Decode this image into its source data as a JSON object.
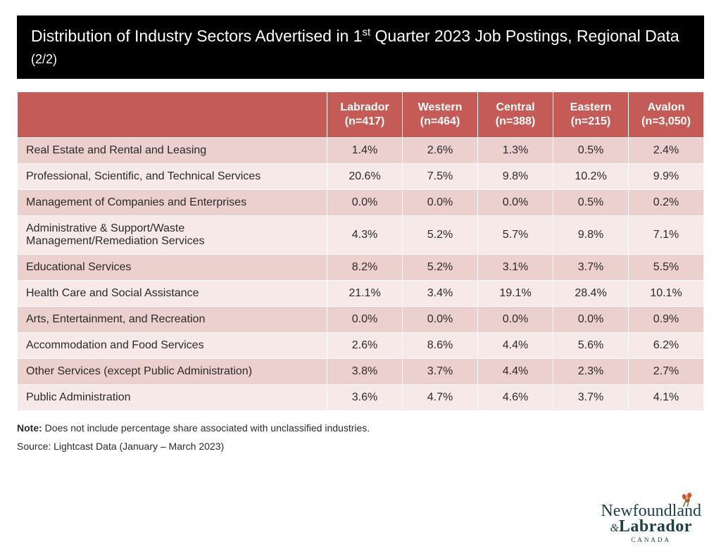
{
  "title": {
    "main_pre": "Distribution of Industry Sectors Advertised in 1",
    "sup": "st",
    "main_post": " Quarter 2023 Job Postings, Regional Data ",
    "paren": "(2/2)"
  },
  "table": {
    "type": "table",
    "header_bg": "#c45b57",
    "header_fg": "#ffffff",
    "row_odd_bg": "#ecd0ce",
    "row_even_bg": "#f6e9e8",
    "text_color": "#2a2a2a",
    "border_color": "#ffffff",
    "font_size_pt": 12,
    "columns": [
      {
        "label_line1": "Labrador",
        "label_line2": "(n=417)"
      },
      {
        "label_line1": "Western",
        "label_line2": "(n=464)"
      },
      {
        "label_line1": "Central",
        "label_line2": "(n=388)"
      },
      {
        "label_line1": "Eastern",
        "label_line2": "(n=215)"
      },
      {
        "label_line1": "Avalon",
        "label_line2": "(n=3,050)"
      }
    ],
    "rows": [
      {
        "label": "Real Estate and Rental and Leasing",
        "vals": [
          "1.4%",
          "2.6%",
          "1.3%",
          "0.5%",
          "2.4%"
        ]
      },
      {
        "label": "Professional, Scientific, and Technical Services",
        "vals": [
          "20.6%",
          "7.5%",
          "9.8%",
          "10.2%",
          "9.9%"
        ]
      },
      {
        "label": "Management of Companies and Enterprises",
        "vals": [
          "0.0%",
          "0.0%",
          "0.0%",
          "0.5%",
          "0.2%"
        ]
      },
      {
        "label": "Administrative & Support/Waste Management/Remediation Services",
        "vals": [
          "4.3%",
          "5.2%",
          "5.7%",
          "9.8%",
          "7.1%"
        ]
      },
      {
        "label": "Educational Services",
        "vals": [
          "8.2%",
          "5.2%",
          "3.1%",
          "3.7%",
          "5.5%"
        ]
      },
      {
        "label": "Health Care and Social Assistance",
        "vals": [
          "21.1%",
          "3.4%",
          "19.1%",
          "28.4%",
          "10.1%"
        ]
      },
      {
        "label": "Arts, Entertainment, and Recreation",
        "vals": [
          "0.0%",
          "0.0%",
          "0.0%",
          "0.0%",
          "0.9%"
        ]
      },
      {
        "label": "Accommodation and Food Services",
        "vals": [
          "2.6%",
          "8.6%",
          "4.4%",
          "5.6%",
          "6.2%"
        ]
      },
      {
        "label": "Other Services (except Public Administration)",
        "vals": [
          "3.8%",
          "3.7%",
          "4.4%",
          "2.3%",
          "2.7%"
        ]
      },
      {
        "label": "Public Administration",
        "vals": [
          "3.6%",
          "4.7%",
          "4.6%",
          "3.7%",
          "4.1%"
        ]
      }
    ]
  },
  "note_bold": "Note:",
  "note_text": " Does not include percentage share associated with unclassified industries.",
  "source": "Source: Lightcast Data (January – March 2023)",
  "logo": {
    "line1": "Newfoundland",
    "amp": "&",
    "line2": "Labrador",
    "sub": "CANADA",
    "color": "#1d4046",
    "flower_color": "#d9502b"
  }
}
